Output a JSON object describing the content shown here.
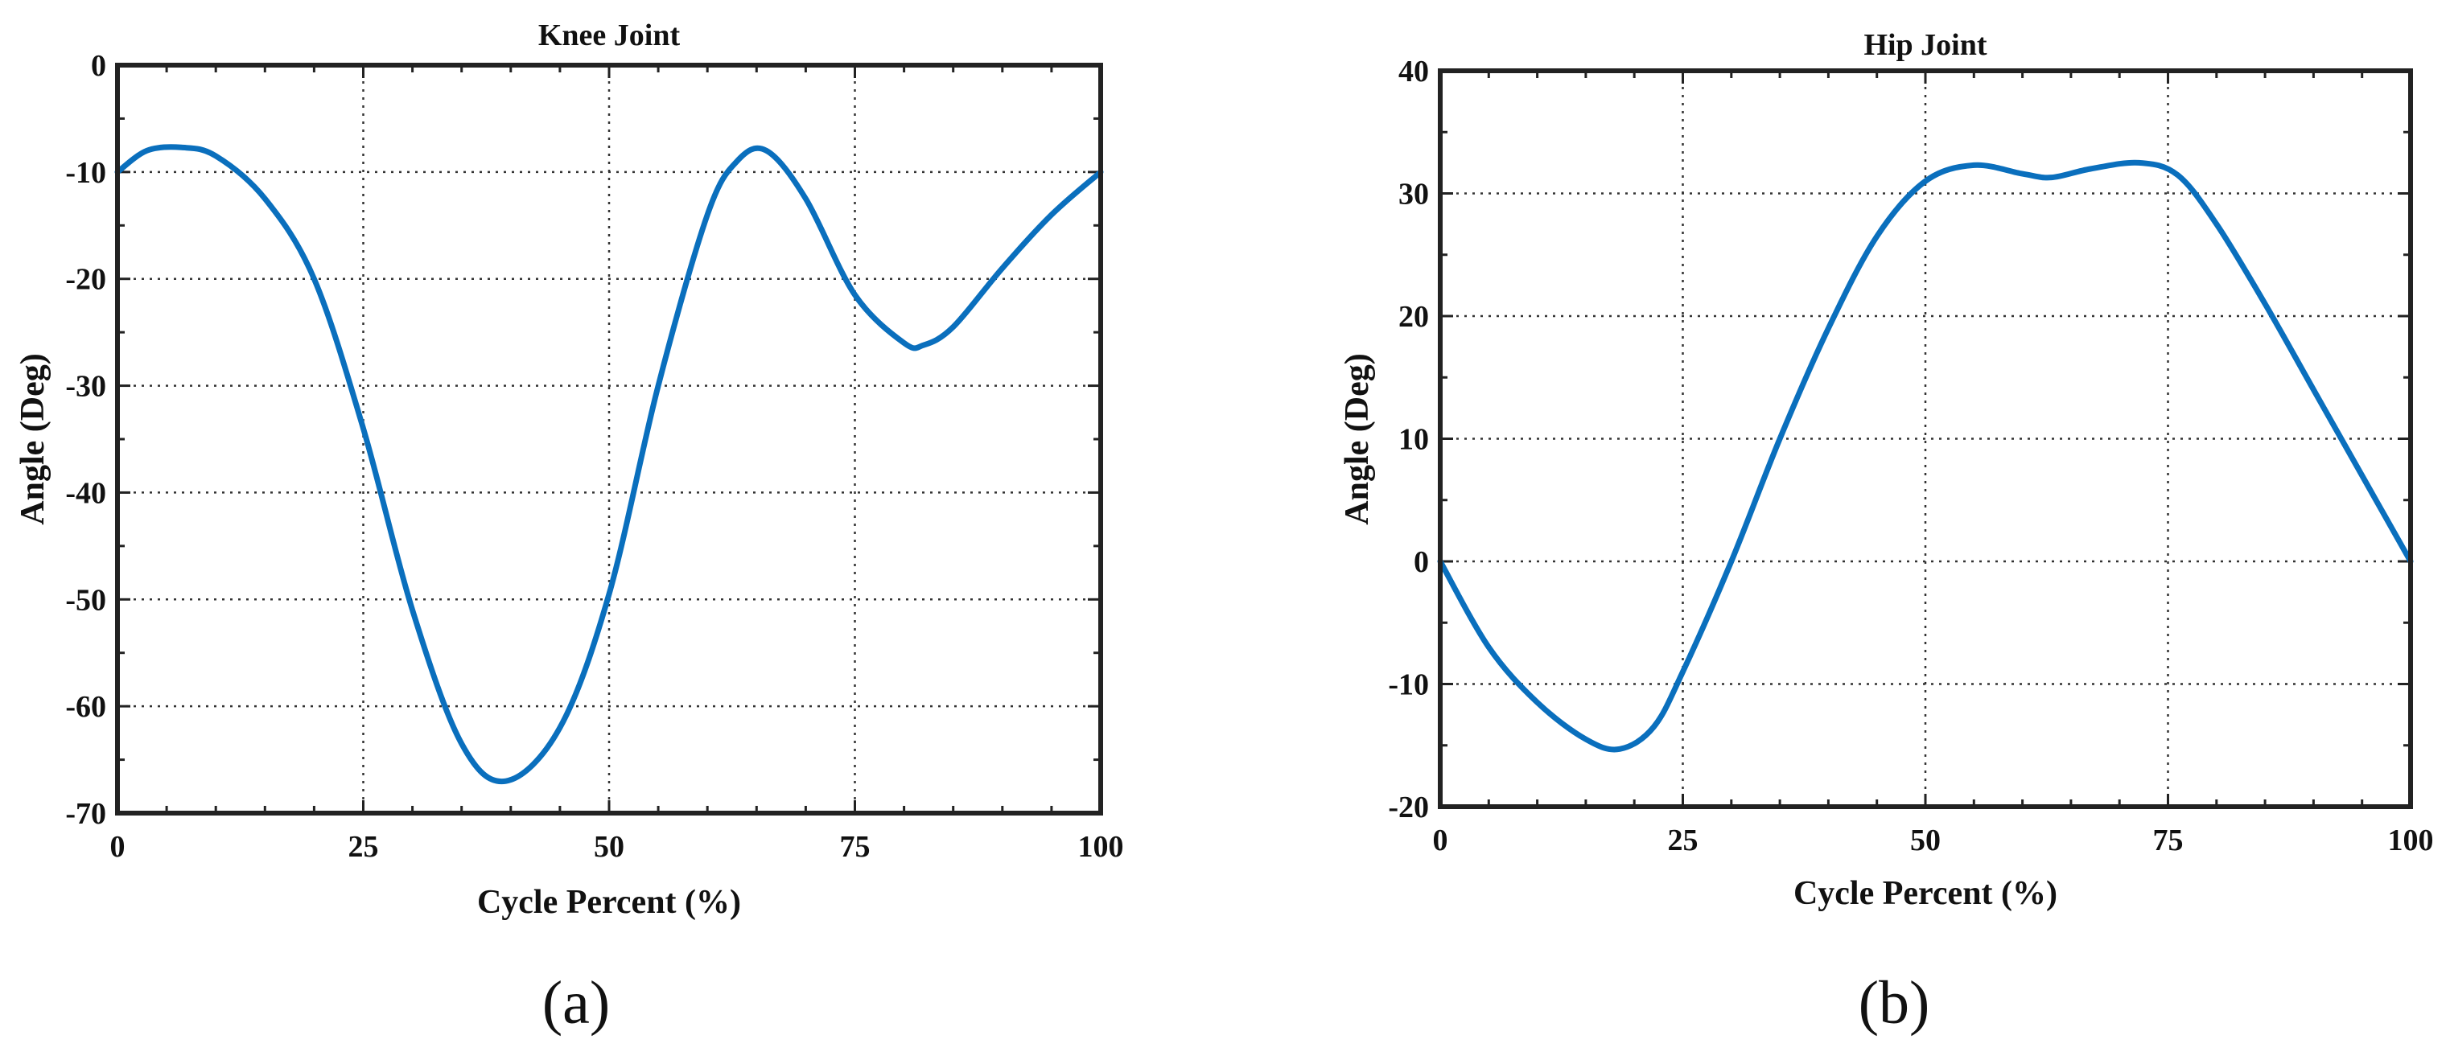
{
  "colors": {
    "series": "#0a6fbd",
    "frame": "#222222",
    "grid": "#333333"
  },
  "chart_data": [
    {
      "type": "line",
      "title": "Knee Joint",
      "xlabel": "Cycle Percent (%)",
      "ylabel": "Angle (Deg)",
      "xlim": [
        0,
        100
      ],
      "ylim": [
        -70,
        0
      ],
      "xticks": [
        0,
        25,
        50,
        75,
        100
      ],
      "yticks": [
        0,
        -10,
        -20,
        -30,
        -40,
        -50,
        -60,
        -70
      ],
      "grid": true,
      "panel_label": "(a)",
      "series": [
        {
          "x": [
            0,
            3,
            6.5,
            10,
            15,
            20,
            25,
            30,
            35,
            39.5,
            45,
            50,
            55,
            60,
            63,
            66,
            70,
            75,
            80,
            82,
            85,
            90,
            95,
            100
          ],
          "y": [
            -10,
            -8,
            -7.7,
            -8.5,
            -12.5,
            -20,
            -34,
            -51,
            -63.5,
            -67,
            -62,
            -49.5,
            -30,
            -14,
            -9,
            -8,
            -12.5,
            -21.5,
            -26,
            -26.2,
            -24.5,
            -19,
            -14,
            -10
          ]
        }
      ]
    },
    {
      "type": "line",
      "title": "Hip Joint",
      "xlabel": "Cycle Percent (%)",
      "ylabel": "Angle (Deg)",
      "xlim": [
        0,
        100
      ],
      "ylim": [
        -20,
        40
      ],
      "xticks": [
        0,
        25,
        50,
        75,
        100
      ],
      "yticks": [
        40,
        30,
        20,
        10,
        0,
        -10,
        -20
      ],
      "grid": true,
      "panel_label": "(b)",
      "series": [
        {
          "x": [
            0,
            5,
            10,
            15,
            18.5,
            22,
            25,
            30,
            35,
            40,
            45,
            50,
            55,
            60,
            63,
            67,
            72,
            76,
            80,
            85,
            90,
            95,
            100
          ],
          "y": [
            0,
            -7,
            -11.5,
            -14.5,
            -15.3,
            -13.5,
            -9,
            0,
            10,
            19,
            26.5,
            31,
            32.3,
            31.6,
            31.3,
            32,
            32.5,
            31.5,
            27.5,
            21,
            14,
            7,
            0
          ]
        }
      ]
    }
  ]
}
